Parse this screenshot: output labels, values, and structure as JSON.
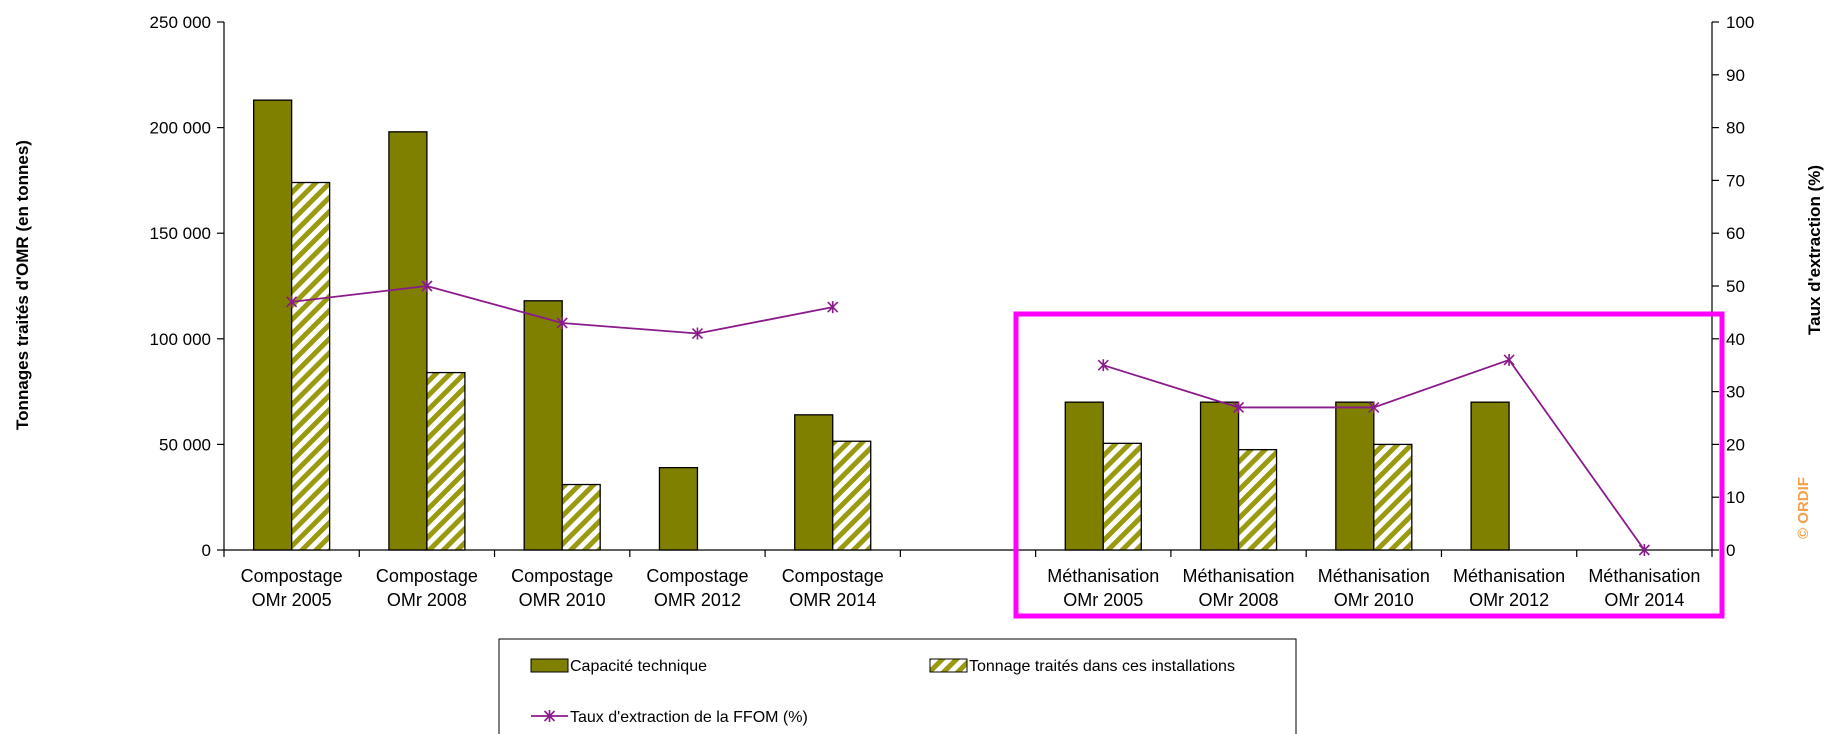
{
  "chart_data": {
    "type": "bar",
    "categories": [
      [
        "Compostage",
        "OMr 2005"
      ],
      [
        "Compostage",
        "OMr 2008"
      ],
      [
        "Compostage",
        "OMR 2010"
      ],
      [
        "Compostage",
        "OMR 2012"
      ],
      [
        "Compostage",
        "OMR 2014"
      ],
      [
        "",
        ""
      ],
      [
        "Méthanisation",
        "OMr 2005"
      ],
      [
        "Méthanisation",
        "OMr 2008"
      ],
      [
        "Méthanisation",
        "OMr 2010"
      ],
      [
        "Méthanisation",
        "OMr 2012"
      ],
      [
        "Méthanisation",
        "OMr 2014"
      ]
    ],
    "series": [
      {
        "name": "Capacité technique",
        "kind": "bar",
        "axis": "left",
        "color": "#7f7f00",
        "values": [
          213000,
          198000,
          118000,
          39000,
          64000,
          null,
          70000,
          70000,
          70000,
          70000,
          null
        ]
      },
      {
        "name": "Tonnage traités dans ces installations",
        "kind": "bar",
        "axis": "left",
        "pattern": "diagonal-hatch",
        "color": "#7f7f00",
        "values": [
          174000,
          84000,
          31000,
          null,
          51500,
          null,
          50500,
          47500,
          50000,
          null,
          null
        ]
      },
      {
        "name": "Taux d'extraction de la FFOM (%)",
        "kind": "line",
        "axis": "right",
        "color": "#8b1a8b",
        "values": [
          47,
          50,
          43,
          41,
          46,
          null,
          35,
          27,
          27,
          36,
          0
        ]
      }
    ],
    "ylabel": "Tonnages traités d'OMR (en tonnes)",
    "y2label": "Taux d'extraction (%)",
    "ylim": [
      0,
      250000
    ],
    "yticks": [
      "0",
      "50 000",
      "100 000",
      "150 000",
      "200 000",
      "250 000"
    ],
    "y2lim": [
      0,
      100
    ],
    "y2ticks": [
      "0",
      "10",
      "20",
      "30",
      "40",
      "50",
      "60",
      "70",
      "80",
      "90",
      "100"
    ],
    "grid": false,
    "legend_position": "bottom",
    "highlight": {
      "categories": [
        "Méthanisation OMr 2005",
        "Méthanisation OMr 2014"
      ],
      "color": "#ff00ff"
    },
    "credit": "© ORDIF"
  }
}
